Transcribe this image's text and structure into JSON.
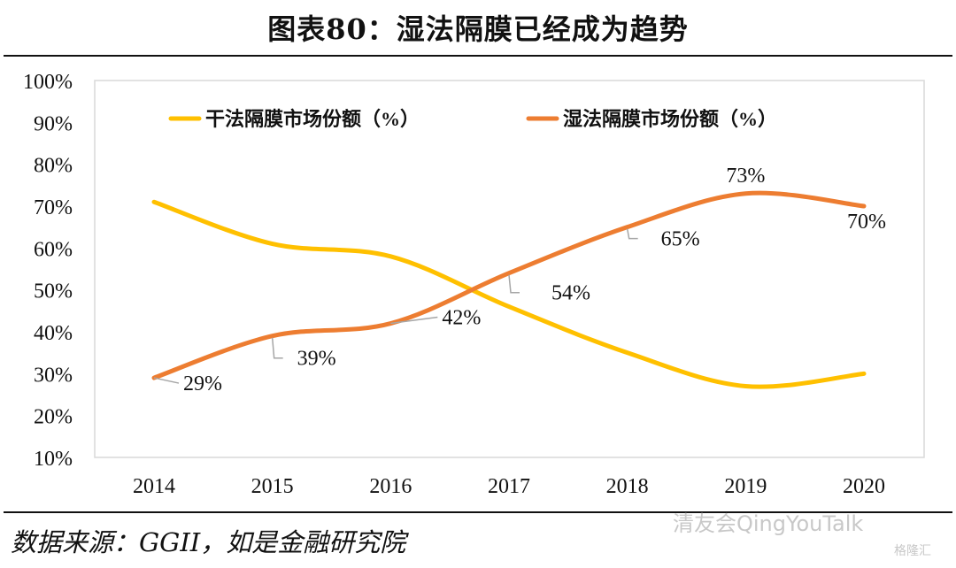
{
  "header": {
    "title": "图表80：湿法隔膜已经成为趋势"
  },
  "footer": {
    "source": "数据来源：GGII，如是金融研究院",
    "watermark": "清友会QingYouTalk",
    "watermark2": "格隆汇"
  },
  "chart_data": {
    "type": "line",
    "title": "图表80：湿法隔膜已经成为趋势",
    "xlabel": "",
    "ylabel": "",
    "categories": [
      "2014",
      "2015",
      "2016",
      "2017",
      "2018",
      "2019",
      "2020"
    ],
    "ylim": [
      0.1,
      1.0
    ],
    "yticks": [
      "10%",
      "20%",
      "30%",
      "40%",
      "50%",
      "60%",
      "70%",
      "80%",
      "90%",
      "100%"
    ],
    "grid": false,
    "smooth": true,
    "legend_position": "top",
    "series": [
      {
        "name": "干法隔膜市场份额（%）",
        "color": "#FFC000",
        "values": [
          0.71,
          0.61,
          0.58,
          0.46,
          0.35,
          0.27,
          0.3
        ],
        "labels": null
      },
      {
        "name": "湿法隔膜市场份额（%）",
        "color": "#ED7D31",
        "values": [
          0.29,
          0.39,
          0.42,
          0.54,
          0.65,
          0.73,
          0.7
        ],
        "labels": [
          "29%",
          "39%",
          "42%",
          "54%",
          "65%",
          "73%",
          "70%"
        ]
      }
    ]
  }
}
